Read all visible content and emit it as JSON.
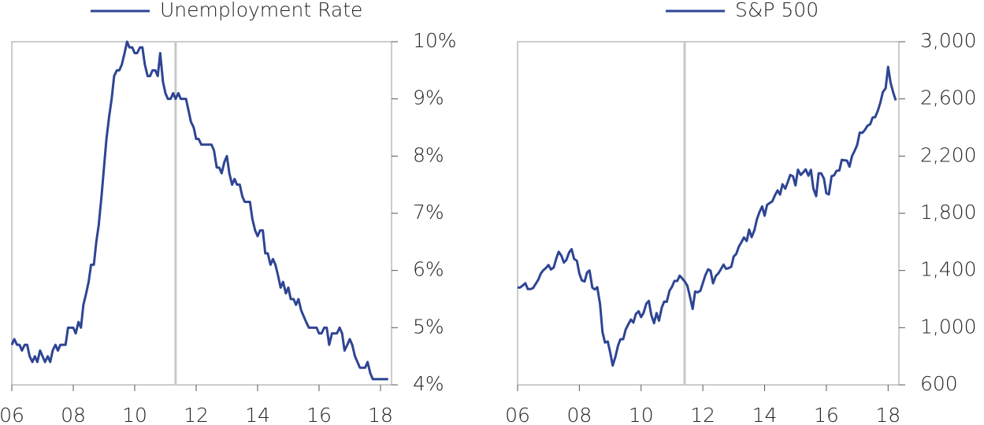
{
  "chart_data": [
    {
      "type": "line",
      "x": [
        2006,
        2006.08,
        2006.17,
        2006.25,
        2006.33,
        2006.42,
        2006.5,
        2006.58,
        2006.67,
        2006.75,
        2006.83,
        2006.92,
        2007,
        2007.08,
        2007.17,
        2007.25,
        2007.33,
        2007.42,
        2007.5,
        2007.58,
        2007.67,
        2007.75,
        2007.83,
        2007.92,
        2008,
        2008.08,
        2008.17,
        2008.25,
        2008.33,
        2008.42,
        2008.5,
        2008.58,
        2008.67,
        2008.75,
        2008.83,
        2008.92,
        2009,
        2009.08,
        2009.17,
        2009.25,
        2009.33,
        2009.42,
        2009.5,
        2009.58,
        2009.67,
        2009.75,
        2009.83,
        2009.92,
        2010,
        2010.08,
        2010.17,
        2010.25,
        2010.33,
        2010.42,
        2010.5,
        2010.58,
        2010.67,
        2010.75,
        2010.83,
        2010.92,
        2011,
        2011.08,
        2011.17,
        2011.25,
        2011.33,
        2011.42,
        2011.5,
        2011.58,
        2011.67,
        2011.75,
        2011.83,
        2011.92,
        2012,
        2012.08,
        2012.17,
        2012.25,
        2012.33,
        2012.42,
        2012.5,
        2012.58,
        2012.67,
        2012.75,
        2012.83,
        2012.92,
        2013,
        2013.08,
        2013.17,
        2013.25,
        2013.33,
        2013.42,
        2013.5,
        2013.58,
        2013.67,
        2013.75,
        2013.83,
        2013.92,
        2014,
        2014.08,
        2014.17,
        2014.25,
        2014.33,
        2014.42,
        2014.5,
        2014.58,
        2014.67,
        2014.75,
        2014.83,
        2014.92,
        2015,
        2015.08,
        2015.17,
        2015.25,
        2015.33,
        2015.42,
        2015.5,
        2015.58,
        2015.67,
        2015.75,
        2015.83,
        2015.92,
        2016,
        2016.08,
        2016.17,
        2016.25,
        2016.33,
        2016.42,
        2016.5,
        2016.58,
        2016.67,
        2016.75,
        2016.83,
        2016.92,
        2017,
        2017.08,
        2017.17,
        2017.25,
        2017.33,
        2017.42,
        2017.5,
        2017.58,
        2017.67,
        2017.75,
        2017.83,
        2017.92,
        2018,
        2018.08,
        2018.17,
        2018.25
      ],
      "series": [
        {
          "name": "Unemployment Rate",
          "color": "#2e4593",
          "values": [
            4.7,
            4.8,
            4.7,
            4.7,
            4.6,
            4.7,
            4.7,
            4.5,
            4.4,
            4.5,
            4.4,
            4.6,
            4.5,
            4.4,
            4.5,
            4.4,
            4.6,
            4.7,
            4.6,
            4.7,
            4.7,
            4.7,
            5.0,
            5.0,
            5.0,
            4.9,
            5.1,
            5.0,
            5.4,
            5.6,
            5.8,
            6.1,
            6.1,
            6.5,
            6.8,
            7.3,
            7.8,
            8.3,
            8.7,
            9.0,
            9.4,
            9.5,
            9.5,
            9.6,
            9.8,
            10.0,
            9.9,
            9.9,
            9.8,
            9.8,
            9.9,
            9.9,
            9.6,
            9.4,
            9.4,
            9.5,
            9.5,
            9.4,
            9.8,
            9.3,
            9.1,
            9.0,
            9.0,
            9.1,
            9.0,
            9.1,
            9.0,
            9.0,
            9.0,
            8.8,
            8.6,
            8.5,
            8.3,
            8.3,
            8.2,
            8.2,
            8.2,
            8.2,
            8.2,
            8.1,
            7.8,
            7.8,
            7.7,
            7.9,
            8.0,
            7.7,
            7.5,
            7.6,
            7.5,
            7.5,
            7.3,
            7.2,
            7.2,
            7.2,
            6.9,
            6.7,
            6.6,
            6.7,
            6.7,
            6.3,
            6.3,
            6.1,
            6.2,
            6.1,
            5.9,
            5.7,
            5.8,
            5.6,
            5.7,
            5.5,
            5.5,
            5.4,
            5.5,
            5.3,
            5.2,
            5.1,
            5.0,
            5.0,
            5.0,
            5.0,
            4.9,
            4.9,
            5.0,
            5.0,
            4.7,
            4.9,
            4.9,
            4.9,
            5.0,
            4.9,
            4.6,
            4.7,
            4.8,
            4.7,
            4.5,
            4.4,
            4.3,
            4.3,
            4.3,
            4.4,
            4.2,
            4.1,
            4.1,
            4.1,
            4.1,
            4.1,
            4.1,
            4.1
          ]
        }
      ],
      "xlim": [
        2006,
        2018.36
      ],
      "xticks": [
        {
          "value": 2006,
          "label": "06"
        },
        {
          "value": 2008,
          "label": "08"
        },
        {
          "value": 2010,
          "label": "10"
        },
        {
          "value": 2012,
          "label": "12"
        },
        {
          "value": 2014,
          "label": "14"
        },
        {
          "value": 2016,
          "label": "16"
        },
        {
          "value": 2018,
          "label": "18"
        }
      ],
      "ylim": [
        4,
        10
      ],
      "yticks": [
        {
          "value": 4,
          "label": "4%"
        },
        {
          "value": 5,
          "label": "5%"
        },
        {
          "value": 6,
          "label": "6%"
        },
        {
          "value": 7,
          "label": "7%"
        },
        {
          "value": 8,
          "label": "8%"
        },
        {
          "value": 9,
          "label": "9%"
        },
        {
          "value": 10,
          "label": "10%"
        }
      ],
      "vline": 2011.33,
      "vline_color": "#c8c8c8"
    },
    {
      "type": "line",
      "x": [
        2006,
        2006.08,
        2006.17,
        2006.25,
        2006.33,
        2006.42,
        2006.5,
        2006.58,
        2006.67,
        2006.75,
        2006.83,
        2006.92,
        2007,
        2007.08,
        2007.17,
        2007.25,
        2007.33,
        2007.42,
        2007.5,
        2007.58,
        2007.67,
        2007.75,
        2007.83,
        2007.92,
        2008,
        2008.08,
        2008.17,
        2008.25,
        2008.33,
        2008.42,
        2008.5,
        2008.58,
        2008.67,
        2008.75,
        2008.83,
        2008.92,
        2009,
        2009.08,
        2009.17,
        2009.25,
        2009.33,
        2009.42,
        2009.5,
        2009.58,
        2009.67,
        2009.75,
        2009.83,
        2009.92,
        2010,
        2010.08,
        2010.17,
        2010.25,
        2010.33,
        2010.42,
        2010.5,
        2010.58,
        2010.67,
        2010.75,
        2010.83,
        2010.92,
        2011,
        2011.08,
        2011.17,
        2011.25,
        2011.33,
        2011.42,
        2011.5,
        2011.58,
        2011.67,
        2011.75,
        2011.83,
        2011.92,
        2012,
        2012.08,
        2012.17,
        2012.25,
        2012.33,
        2012.42,
        2012.5,
        2012.58,
        2012.67,
        2012.75,
        2012.83,
        2012.92,
        2013,
        2013.08,
        2013.17,
        2013.25,
        2013.33,
        2013.42,
        2013.5,
        2013.58,
        2013.67,
        2013.75,
        2013.83,
        2013.92,
        2014,
        2014.08,
        2014.17,
        2014.25,
        2014.33,
        2014.42,
        2014.5,
        2014.58,
        2014.67,
        2014.75,
        2014.83,
        2014.92,
        2015,
        2015.08,
        2015.17,
        2015.25,
        2015.33,
        2015.42,
        2015.5,
        2015.58,
        2015.67,
        2015.75,
        2015.83,
        2015.92,
        2016,
        2016.08,
        2016.17,
        2016.25,
        2016.33,
        2016.42,
        2016.5,
        2016.58,
        2016.67,
        2016.75,
        2016.83,
        2016.92,
        2017,
        2017.08,
        2017.17,
        2017.25,
        2017.33,
        2017.42,
        2017.5,
        2017.58,
        2017.67,
        2017.75,
        2017.83,
        2017.92,
        2018,
        2018.08,
        2018.17,
        2018.25
      ],
      "series": [
        {
          "name": "S&P 500",
          "color": "#2e4593",
          "values": [
            1280,
            1281,
            1295,
            1311,
            1270,
            1270,
            1277,
            1304,
            1336,
            1378,
            1401,
            1418,
            1438,
            1407,
            1421,
            1482,
            1531,
            1503,
            1455,
            1474,
            1527,
            1549,
            1481,
            1468,
            1379,
            1331,
            1323,
            1386,
            1400,
            1280,
            1267,
            1283,
            1165,
            969,
            896,
            903,
            826,
            735,
            798,
            873,
            919,
            919,
            987,
            1021,
            1057,
            1036,
            1096,
            1115,
            1074,
            1104,
            1169,
            1187,
            1089,
            1031,
            1102,
            1049,
            1141,
            1183,
            1181,
            1258,
            1286,
            1327,
            1326,
            1364,
            1345,
            1321,
            1292,
            1219,
            1131,
            1253,
            1247,
            1258,
            1312,
            1366,
            1408,
            1398,
            1310,
            1362,
            1379,
            1407,
            1441,
            1412,
            1416,
            1426,
            1498,
            1515,
            1569,
            1598,
            1631,
            1606,
            1686,
            1633,
            1682,
            1757,
            1806,
            1848,
            1783,
            1859,
            1872,
            1884,
            1924,
            1960,
            1931,
            2003,
            1972,
            2018,
            2068,
            2059,
            1995,
            2105,
            2068,
            2086,
            2107,
            2063,
            2104,
            1972,
            1920,
            2079,
            2080,
            2044,
            1940,
            1932,
            2060,
            2065,
            2097,
            2099,
            2174,
            2171,
            2168,
            2126,
            2199,
            2239,
            2279,
            2364,
            2363,
            2384,
            2412,
            2423,
            2470,
            2472,
            2519,
            2575,
            2648,
            2674,
            2824,
            2714,
            2641,
            2590
          ]
        }
      ],
      "xlim": [
        2006,
        2018.35
      ],
      "xticks": [
        {
          "value": 2006,
          "label": "06"
        },
        {
          "value": 2008,
          "label": "08"
        },
        {
          "value": 2010,
          "label": "10"
        },
        {
          "value": 2012,
          "label": "12"
        },
        {
          "value": 2014,
          "label": "14"
        },
        {
          "value": 2016,
          "label": "16"
        },
        {
          "value": 2018,
          "label": "18"
        }
      ],
      "ylim": [
        600,
        3000
      ],
      "yticks": [
        600,
        {
          "value": 1000,
          "label": "1,000"
        },
        {
          "value": 1400,
          "label": "1,400"
        },
        {
          "value": 1800,
          "label": "1,800"
        },
        {
          "value": 2200,
          "label": "2,200"
        },
        {
          "value": 2600,
          "label": "2,600"
        },
        {
          "value": 3000,
          "label": "3,000"
        }
      ],
      "vline": 2011.41,
      "vline_color": "#c8c8c8"
    }
  ]
}
